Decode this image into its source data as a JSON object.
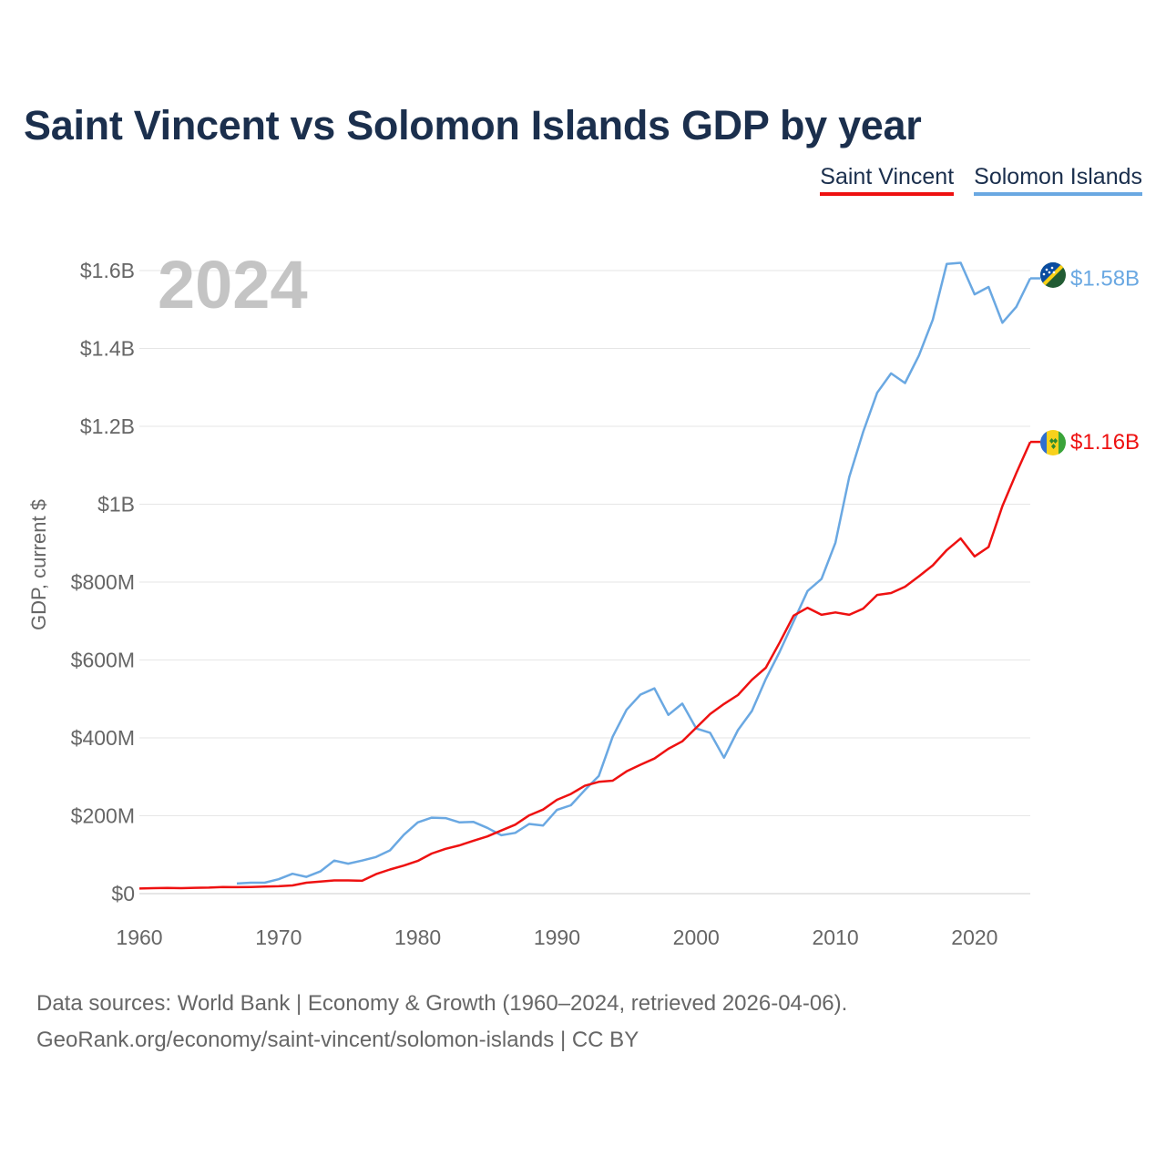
{
  "title": "Saint Vincent vs Solomon Islands GDP by year",
  "legend": {
    "series_a": "Saint Vincent",
    "series_b": "Solomon Islands"
  },
  "year_watermark": "2024",
  "source_lines": [
    "Data sources: World Bank | Economy & Growth (1960–2024, retrieved 2026-04-06).",
    "GeoRank.org/economy/saint-vincent/solomon-islands | CC BY"
  ],
  "colors": {
    "saint_vincent": "#ee1111",
    "solomon_islands": "#6aa8e2",
    "title": "#1b2f4d"
  },
  "chart_data": {
    "type": "line",
    "title": "Saint Vincent vs Solomon Islands GDP by year",
    "ylabel": "GDP, current $",
    "xlabel": "",
    "xlim": [
      1960,
      2024
    ],
    "ylim": [
      0,
      1600000000
    ],
    "x_ticks": [
      1960,
      1970,
      1980,
      1990,
      2000,
      2010,
      2020
    ],
    "x_tick_labels": [
      "1960",
      "1970",
      "1980",
      "1990",
      "2000",
      "2010",
      "2020"
    ],
    "y_ticks": [
      0,
      200000000,
      400000000,
      600000000,
      800000000,
      1000000000,
      1200000000,
      1400000000,
      1600000000
    ],
    "y_tick_labels": [
      "$0",
      "$200M",
      "$400M",
      "$600M",
      "$800M",
      "$1B",
      "$1.2B",
      "$1.4B",
      "$1.6B"
    ],
    "grid": true,
    "legend_position": "top-right",
    "series": [
      {
        "name": "Saint Vincent",
        "end_label": "$1.16B",
        "x": [
          1960,
          1961,
          1962,
          1963,
          1964,
          1965,
          1966,
          1967,
          1968,
          1969,
          1970,
          1971,
          1972,
          1973,
          1974,
          1975,
          1976,
          1977,
          1978,
          1979,
          1980,
          1981,
          1982,
          1983,
          1984,
          1985,
          1986,
          1987,
          1988,
          1989,
          1990,
          1991,
          1992,
          1993,
          1994,
          1995,
          1996,
          1997,
          1998,
          1999,
          2000,
          2001,
          2002,
          2003,
          2004,
          2005,
          2006,
          2007,
          2008,
          2009,
          2010,
          2011,
          2012,
          2013,
          2014,
          2015,
          2016,
          2017,
          2018,
          2019,
          2020,
          2021,
          2022,
          2023,
          2024
        ],
        "y": [
          13000000,
          14000000,
          14500000,
          14000000,
          15000000,
          15500000,
          17000000,
          16500000,
          17000000,
          18000000,
          19000000,
          21000000,
          28000000,
          31000000,
          34000000,
          34000000,
          33000000,
          50000000,
          62000000,
          72000000,
          84000000,
          103000000,
          115000000,
          124000000,
          136000000,
          147000000,
          162000000,
          177000000,
          201000000,
          216000000,
          241000000,
          256000000,
          277000000,
          287000000,
          290000000,
          314000000,
          331000000,
          347000000,
          372000000,
          391000000,
          426000000,
          461000000,
          487000000,
          510000000,
          549000000,
          580000000,
          645000000,
          714000000,
          734000000,
          716000000,
          722000000,
          716000000,
          732000000,
          767000000,
          772000000,
          788000000,
          815000000,
          843000000,
          882000000,
          912000000,
          866000000,
          890000000,
          995000000,
          1080000000,
          1160000000
        ]
      },
      {
        "name": "Solomon Islands",
        "end_label": "$1.58B",
        "x": [
          1967,
          1968,
          1969,
          1970,
          1971,
          1972,
          1973,
          1974,
          1975,
          1976,
          1977,
          1978,
          1979,
          1980,
          1981,
          1982,
          1983,
          1984,
          1985,
          1986,
          1987,
          1988,
          1989,
          1990,
          1991,
          1992,
          1993,
          1994,
          1995,
          1996,
          1997,
          1998,
          1999,
          2000,
          2001,
          2002,
          2003,
          2004,
          2005,
          2006,
          2007,
          2008,
          2009,
          2010,
          2011,
          2012,
          2013,
          2014,
          2015,
          2016,
          2017,
          2018,
          2019,
          2020,
          2021,
          2022,
          2023,
          2024
        ],
        "y": [
          26000000,
          28000000,
          28000000,
          37000000,
          51000000,
          43000000,
          57000000,
          85000000,
          77000000,
          85000000,
          94000000,
          111000000,
          151000000,
          183000000,
          195000000,
          194000000,
          183000000,
          184000000,
          169000000,
          150000000,
          156000000,
          179000000,
          175000000,
          215000000,
          227000000,
          266000000,
          302000000,
          403000000,
          472000000,
          511000000,
          527000000,
          459000000,
          488000000,
          424000000,
          413000000,
          349000000,
          420000000,
          469000000,
          551000000,
          621000000,
          699000000,
          777000000,
          808000000,
          901000000,
          1070000000,
          1186000000,
          1286000000,
          1336000000,
          1311000000,
          1382000000,
          1474000000,
          1617000000,
          1620000000,
          1539000000,
          1558000000,
          1466000000,
          1507000000,
          1580000000
        ]
      }
    ]
  }
}
